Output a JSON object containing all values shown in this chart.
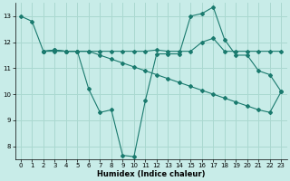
{
  "xlabel": "Humidex (Indice chaleur)",
  "bg_color": "#c8ece8",
  "grid_color": "#aad8d0",
  "line_color": "#1a7a6e",
  "xlim": [
    -0.5,
    23.5
  ],
  "ylim": [
    7.5,
    13.5
  ],
  "yticks": [
    8,
    9,
    10,
    11,
    12,
    13
  ],
  "xticks": [
    0,
    1,
    2,
    3,
    4,
    5,
    6,
    7,
    8,
    9,
    10,
    11,
    12,
    13,
    14,
    15,
    16,
    17,
    18,
    19,
    20,
    21,
    22,
    23
  ],
  "line1_x": [
    0,
    1,
    2,
    3,
    4,
    5,
    6,
    7,
    8,
    9,
    10,
    11,
    12,
    13,
    14,
    15,
    16,
    17,
    18,
    19,
    20,
    21,
    22,
    23
  ],
  "line1_y": [
    13.0,
    12.8,
    11.65,
    11.7,
    11.65,
    11.65,
    10.2,
    9.3,
    9.4,
    7.65,
    7.6,
    9.75,
    11.55,
    11.55,
    11.55,
    13.0,
    13.1,
    13.35,
    12.1,
    11.5,
    11.5,
    10.9,
    10.75,
    10.1
  ],
  "line2_x": [
    2,
    3,
    4,
    5,
    6,
    7,
    8,
    9,
    10,
    11,
    12,
    13,
    14,
    15,
    16,
    17,
    18,
    19,
    20,
    21,
    22,
    23
  ],
  "line2_y": [
    11.65,
    11.7,
    11.65,
    11.65,
    11.65,
    11.65,
    11.65,
    11.65,
    11.65,
    11.65,
    11.7,
    11.65,
    11.65,
    11.65,
    12.0,
    12.15,
    11.65,
    11.65,
    11.65,
    11.65,
    11.65,
    11.65
  ],
  "line3_x": [
    2,
    3,
    4,
    5,
    6,
    7,
    8,
    9,
    10,
    11,
    12,
    13,
    14,
    15,
    16,
    17,
    18,
    19,
    20,
    21,
    22,
    23
  ],
  "line3_y": [
    11.65,
    11.65,
    11.65,
    11.65,
    11.65,
    11.5,
    11.35,
    11.2,
    11.05,
    10.9,
    10.75,
    10.6,
    10.45,
    10.3,
    10.15,
    10.0,
    9.85,
    9.7,
    9.55,
    9.4,
    9.3,
    10.1
  ],
  "xlabel_fontsize": 6.0,
  "tick_fontsize": 5.0
}
